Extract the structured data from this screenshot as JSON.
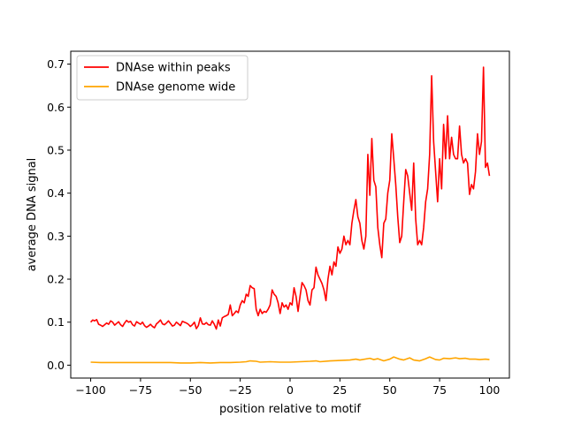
{
  "chart_data": {
    "type": "line",
    "title": "",
    "xlabel": "position relative to motif",
    "ylabel": "average DNA signal",
    "xlim": [
      -110,
      110
    ],
    "ylim": [
      -0.03,
      0.73
    ],
    "xticks": [
      -100,
      -75,
      -50,
      -25,
      0,
      25,
      50,
      75,
      100
    ],
    "yticks": [
      0.0,
      0.1,
      0.2,
      0.3,
      0.4,
      0.5,
      0.6,
      0.7
    ],
    "xtick_labels": [
      "−100",
      "−75",
      "−50",
      "−25",
      "0",
      "25",
      "50",
      "75",
      "100"
    ],
    "ytick_labels": [
      "0.0",
      "0.1",
      "0.2",
      "0.3",
      "0.4",
      "0.5",
      "0.6",
      "0.7"
    ],
    "grid": false,
    "legend_position": "top-left",
    "series": [
      {
        "name": "DNAse within peaks",
        "color": "#ff0000",
        "points": [
          [
            -100,
            0.1
          ],
          [
            -99,
            0.105
          ],
          [
            -98,
            0.103
          ],
          [
            -97,
            0.106
          ],
          [
            -96,
            0.095
          ],
          [
            -95,
            0.093
          ],
          [
            -94,
            0.09
          ],
          [
            -93,
            0.094
          ],
          [
            -92,
            0.098
          ],
          [
            -91,
            0.095
          ],
          [
            -90,
            0.103
          ],
          [
            -89,
            0.1
          ],
          [
            -88,
            0.093
          ],
          [
            -87,
            0.097
          ],
          [
            -86,
            0.101
          ],
          [
            -85,
            0.094
          ],
          [
            -84,
            0.09
          ],
          [
            -83,
            0.098
          ],
          [
            -82,
            0.104
          ],
          [
            -81,
            0.1
          ],
          [
            -80,
            0.102
          ],
          [
            -79,
            0.094
          ],
          [
            -78,
            0.091
          ],
          [
            -77,
            0.101
          ],
          [
            -76,
            0.098
          ],
          [
            -75,
            0.095
          ],
          [
            -74,
            0.1
          ],
          [
            -73,
            0.092
          ],
          [
            -72,
            0.088
          ],
          [
            -71,
            0.091
          ],
          [
            -70,
            0.095
          ],
          [
            -69,
            0.09
          ],
          [
            -68,
            0.087
          ],
          [
            -67,
            0.096
          ],
          [
            -66,
            0.1
          ],
          [
            -65,
            0.105
          ],
          [
            -64,
            0.096
          ],
          [
            -63,
            0.094
          ],
          [
            -62,
            0.098
          ],
          [
            -61,
            0.103
          ],
          [
            -60,
            0.097
          ],
          [
            -59,
            0.091
          ],
          [
            -58,
            0.093
          ],
          [
            -57,
            0.1
          ],
          [
            -56,
            0.096
          ],
          [
            -55,
            0.092
          ],
          [
            -54,
            0.102
          ],
          [
            -53,
            0.1
          ],
          [
            -52,
            0.098
          ],
          [
            -51,
            0.095
          ],
          [
            -50,
            0.09
          ],
          [
            -49,
            0.094
          ],
          [
            -48,
            0.1
          ],
          [
            -47,
            0.085
          ],
          [
            -46,
            0.092
          ],
          [
            -45,
            0.11
          ],
          [
            -44,
            0.096
          ],
          [
            -43,
            0.095
          ],
          [
            -42,
            0.099
          ],
          [
            -41,
            0.094
          ],
          [
            -40,
            0.093
          ],
          [
            -39,
            0.103
          ],
          [
            -38,
            0.095
          ],
          [
            -37,
            0.084
          ],
          [
            -36,
            0.105
          ],
          [
            -35,
            0.091
          ],
          [
            -34,
            0.11
          ],
          [
            -33,
            0.113
          ],
          [
            -32,
            0.115
          ],
          [
            -31,
            0.118
          ],
          [
            -30,
            0.14
          ],
          [
            -29,
            0.115
          ],
          [
            -28,
            0.12
          ],
          [
            -27,
            0.126
          ],
          [
            -26,
            0.122
          ],
          [
            -25,
            0.14
          ],
          [
            -24,
            0.15
          ],
          [
            -23,
            0.145
          ],
          [
            -22,
            0.165
          ],
          [
            -21,
            0.16
          ],
          [
            -20,
            0.185
          ],
          [
            -19,
            0.18
          ],
          [
            -18,
            0.178
          ],
          [
            -17,
            0.13
          ],
          [
            -16,
            0.115
          ],
          [
            -15,
            0.13
          ],
          [
            -14,
            0.12
          ],
          [
            -13,
            0.125
          ],
          [
            -12,
            0.123
          ],
          [
            -11,
            0.13
          ],
          [
            -10,
            0.14
          ],
          [
            -9,
            0.175
          ],
          [
            -8,
            0.165
          ],
          [
            -7,
            0.16
          ],
          [
            -6,
            0.145
          ],
          [
            -5,
            0.12
          ],
          [
            -4,
            0.145
          ],
          [
            -3,
            0.135
          ],
          [
            -2,
            0.14
          ],
          [
            -1,
            0.13
          ],
          [
            0,
            0.145
          ],
          [
            1,
            0.14
          ],
          [
            2,
            0.18
          ],
          [
            3,
            0.16
          ],
          [
            4,
            0.125
          ],
          [
            5,
            0.16
          ],
          [
            6,
            0.192
          ],
          [
            7,
            0.185
          ],
          [
            8,
            0.175
          ],
          [
            9,
            0.15
          ],
          [
            10,
            0.14
          ],
          [
            11,
            0.175
          ],
          [
            12,
            0.18
          ],
          [
            13,
            0.228
          ],
          [
            14,
            0.21
          ],
          [
            15,
            0.2
          ],
          [
            16,
            0.19
          ],
          [
            17,
            0.175
          ],
          [
            18,
            0.15
          ],
          [
            19,
            0.2
          ],
          [
            20,
            0.23
          ],
          [
            21,
            0.21
          ],
          [
            22,
            0.24
          ],
          [
            23,
            0.23
          ],
          [
            24,
            0.275
          ],
          [
            25,
            0.26
          ],
          [
            26,
            0.27
          ],
          [
            27,
            0.3
          ],
          [
            28,
            0.28
          ],
          [
            29,
            0.29
          ],
          [
            30,
            0.28
          ],
          [
            31,
            0.33
          ],
          [
            32,
            0.36
          ],
          [
            33,
            0.385
          ],
          [
            34,
            0.345
          ],
          [
            35,
            0.33
          ],
          [
            36,
            0.29
          ],
          [
            37,
            0.27
          ],
          [
            38,
            0.3
          ],
          [
            39,
            0.49
          ],
          [
            40,
            0.395
          ],
          [
            41,
            0.527
          ],
          [
            42,
            0.43
          ],
          [
            43,
            0.415
          ],
          [
            44,
            0.32
          ],
          [
            45,
            0.28
          ],
          [
            46,
            0.25
          ],
          [
            47,
            0.33
          ],
          [
            48,
            0.34
          ],
          [
            49,
            0.4
          ],
          [
            50,
            0.43
          ],
          [
            51,
            0.538
          ],
          [
            52,
            0.48
          ],
          [
            53,
            0.42
          ],
          [
            54,
            0.345
          ],
          [
            55,
            0.285
          ],
          [
            56,
            0.3
          ],
          [
            57,
            0.38
          ],
          [
            58,
            0.455
          ],
          [
            59,
            0.44
          ],
          [
            60,
            0.4
          ],
          [
            61,
            0.36
          ],
          [
            62,
            0.47
          ],
          [
            63,
            0.34
          ],
          [
            64,
            0.28
          ],
          [
            65,
            0.29
          ],
          [
            66,
            0.28
          ],
          [
            67,
            0.32
          ],
          [
            68,
            0.38
          ],
          [
            69,
            0.41
          ],
          [
            70,
            0.49
          ],
          [
            71,
            0.673
          ],
          [
            72,
            0.52
          ],
          [
            73,
            0.45
          ],
          [
            74,
            0.38
          ],
          [
            75,
            0.48
          ],
          [
            76,
            0.41
          ],
          [
            77,
            0.56
          ],
          [
            78,
            0.48
          ],
          [
            79,
            0.58
          ],
          [
            80,
            0.48
          ],
          [
            81,
            0.53
          ],
          [
            82,
            0.49
          ],
          [
            83,
            0.48
          ],
          [
            84,
            0.48
          ],
          [
            85,
            0.556
          ],
          [
            86,
            0.49
          ],
          [
            87,
            0.47
          ],
          [
            88,
            0.48
          ],
          [
            89,
            0.47
          ],
          [
            90,
            0.397
          ],
          [
            91,
            0.42
          ],
          [
            92,
            0.41
          ],
          [
            93,
            0.45
          ],
          [
            94,
            0.538
          ],
          [
            95,
            0.49
          ],
          [
            96,
            0.52
          ],
          [
            97,
            0.693
          ],
          [
            98,
            0.46
          ],
          [
            99,
            0.47
          ],
          [
            100,
            0.44
          ]
        ]
      },
      {
        "name": "DNAse genome wide",
        "color": "#ffa500",
        "points": [
          [
            -100,
            0.007
          ],
          [
            -95,
            0.006
          ],
          [
            -90,
            0.006
          ],
          [
            -85,
            0.006
          ],
          [
            -80,
            0.006
          ],
          [
            -75,
            0.006
          ],
          [
            -70,
            0.006
          ],
          [
            -65,
            0.006
          ],
          [
            -60,
            0.006
          ],
          [
            -55,
            0.005
          ],
          [
            -50,
            0.005
          ],
          [
            -45,
            0.006
          ],
          [
            -40,
            0.005
          ],
          [
            -35,
            0.006
          ],
          [
            -30,
            0.006
          ],
          [
            -25,
            0.007
          ],
          [
            -22,
            0.008
          ],
          [
            -20,
            0.01
          ],
          [
            -17,
            0.009
          ],
          [
            -15,
            0.007
          ],
          [
            -10,
            0.008
          ],
          [
            -5,
            0.007
          ],
          [
            0,
            0.007
          ],
          [
            5,
            0.008
          ],
          [
            10,
            0.009
          ],
          [
            13,
            0.01
          ],
          [
            15,
            0.008
          ],
          [
            20,
            0.01
          ],
          [
            25,
            0.011
          ],
          [
            30,
            0.012
          ],
          [
            33,
            0.014
          ],
          [
            35,
            0.012
          ],
          [
            40,
            0.016
          ],
          [
            42,
            0.013
          ],
          [
            44,
            0.015
          ],
          [
            47,
            0.01
          ],
          [
            50,
            0.014
          ],
          [
            52,
            0.019
          ],
          [
            55,
            0.014
          ],
          [
            57,
            0.012
          ],
          [
            60,
            0.017
          ],
          [
            62,
            0.012
          ],
          [
            65,
            0.01
          ],
          [
            68,
            0.015
          ],
          [
            70,
            0.019
          ],
          [
            73,
            0.013
          ],
          [
            75,
            0.012
          ],
          [
            77,
            0.016
          ],
          [
            80,
            0.015
          ],
          [
            83,
            0.017
          ],
          [
            85,
            0.015
          ],
          [
            88,
            0.016
          ],
          [
            90,
            0.014
          ],
          [
            93,
            0.014
          ],
          [
            95,
            0.013
          ],
          [
            98,
            0.014
          ],
          [
            100,
            0.013
          ]
        ]
      }
    ]
  }
}
